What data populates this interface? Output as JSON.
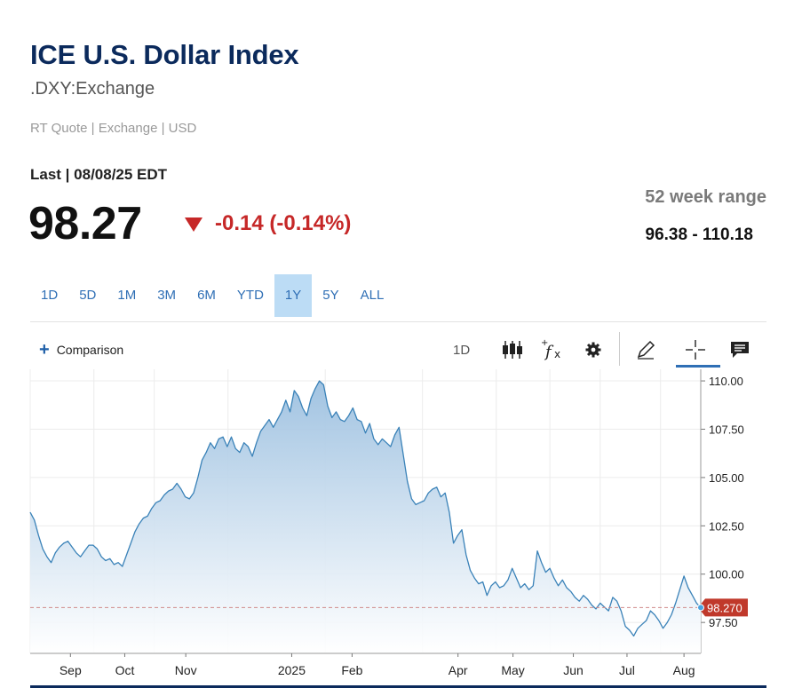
{
  "header": {
    "title": "ICE U.S. Dollar Index",
    "symbol": ".DXY:Exchange",
    "quote_info": "RT Quote | Exchange | USD",
    "last_label": "Last | 08/08/25 EDT",
    "price": "98.27",
    "change": "-0.14 (-0.14%)",
    "range_label": "52 week range",
    "range_value": "96.38 - 110.18"
  },
  "periods": [
    "1D",
    "5D",
    "1M",
    "3M",
    "6M",
    "YTD",
    "1Y",
    "5Y",
    "ALL"
  ],
  "active_period": "1Y",
  "toolbar": {
    "comparison_label": "Comparison",
    "interval_label": "1D"
  },
  "colors": {
    "title": "#0b2a5c",
    "accent": "#2f6fb5",
    "negative": "#c62828",
    "line": "#3a82b8",
    "area_top": "#9cc0e0"
  },
  "chart_data": {
    "type": "area",
    "x_ticks": [
      "Sep",
      "Oct",
      "Nov",
      "2025",
      "Feb",
      "Apr",
      "May",
      "Jun",
      "Jul",
      "Aug"
    ],
    "y_ticks": [
      "110.00",
      "107.50",
      "105.00",
      "102.50",
      "100.00",
      "97.50"
    ],
    "ylim": [
      95.9,
      110.6
    ],
    "last_value_label": "98.270",
    "last_value": 98.27,
    "grid": true,
    "series": [
      {
        "values": [
          103.2,
          102.8,
          102.0,
          101.3,
          100.9,
          100.6,
          101.1,
          101.4,
          101.6,
          101.7,
          101.4,
          101.1,
          100.9,
          101.2,
          101.5,
          101.5,
          101.3,
          100.9,
          100.7,
          100.8,
          100.5,
          100.6,
          100.4,
          101.0,
          101.6,
          102.2,
          102.6,
          102.9,
          103.0,
          103.4,
          103.7,
          103.8,
          104.1,
          104.3,
          104.4,
          104.7,
          104.4,
          104.0,
          103.9,
          104.2,
          105.0,
          105.9,
          106.3,
          106.8,
          106.5,
          107.0,
          107.1,
          106.6,
          107.1,
          106.5,
          106.3,
          106.8,
          106.6,
          106.1,
          106.8,
          107.4,
          107.7,
          108.0,
          107.6,
          108.0,
          108.4,
          109.0,
          108.4,
          109.5,
          109.2,
          108.6,
          108.2,
          109.1,
          109.6,
          110.0,
          109.8,
          108.7,
          108.1,
          108.4,
          108.0,
          107.9,
          108.2,
          108.6,
          108.0,
          107.9,
          107.3,
          107.8,
          107.0,
          106.7,
          107.0,
          106.8,
          106.6,
          107.2,
          107.6,
          106.2,
          104.8,
          103.9,
          103.6,
          103.7,
          103.8,
          104.2,
          104.4,
          104.5,
          104.0,
          104.2,
          103.2,
          101.6,
          102.0,
          102.3,
          101.0,
          100.2,
          99.8,
          99.5,
          99.6,
          98.9,
          99.4,
          99.6,
          99.3,
          99.4,
          99.7,
          100.3,
          99.8,
          99.3,
          99.5,
          99.2,
          99.4,
          101.2,
          100.6,
          100.1,
          100.3,
          99.8,
          99.4,
          99.7,
          99.3,
          99.1,
          98.8,
          98.6,
          98.9,
          98.7,
          98.4,
          98.2,
          98.5,
          98.3,
          98.1,
          98.8,
          98.6,
          98.1,
          97.3,
          97.1,
          96.8,
          97.2,
          97.4,
          97.6,
          98.1,
          97.9,
          97.6,
          97.2,
          97.5,
          97.9,
          98.5,
          99.2,
          99.9,
          99.3,
          98.9,
          98.5,
          98.27
        ]
      }
    ]
  }
}
